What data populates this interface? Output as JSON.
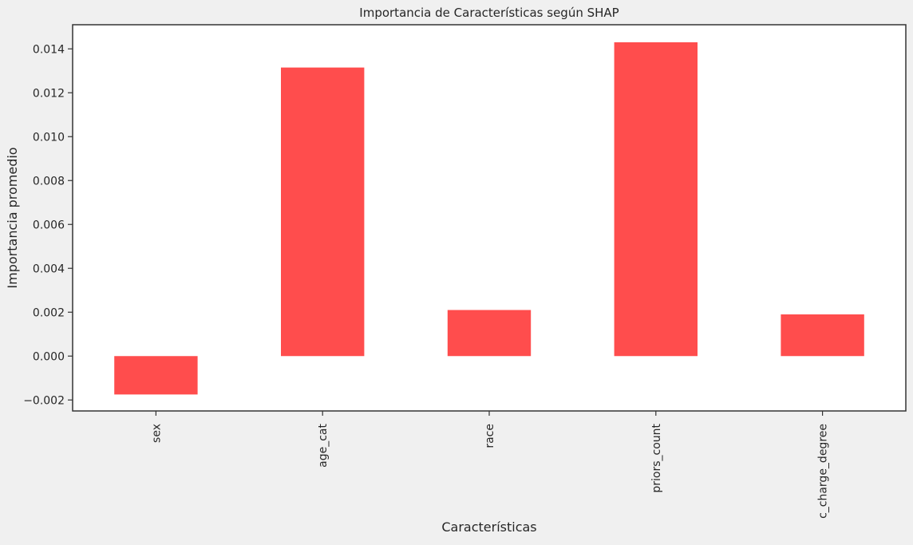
{
  "chart_data": {
    "type": "bar",
    "title": "Importancia de Características según SHAP",
    "xlabel": "Características",
    "ylabel": "Importancia promedio",
    "categories": [
      "sex",
      "age_cat",
      "race",
      "priors_count",
      "c_charge_degree"
    ],
    "values": [
      -0.00175,
      0.01315,
      0.0021,
      0.0143,
      0.0019
    ],
    "ylim": [
      -0.0025,
      0.0151
    ],
    "yticks": [
      "−0.002",
      "0.000",
      "0.002",
      "0.004",
      "0.006",
      "0.008",
      "0.010",
      "0.012",
      "0.014"
    ],
    "ytick_values": [
      -0.002,
      0,
      0.002,
      0.004,
      0.006,
      0.008,
      0.01,
      0.012,
      0.014
    ],
    "bar_color": "#ff4d4d",
    "grid": false,
    "legend": "none"
  }
}
